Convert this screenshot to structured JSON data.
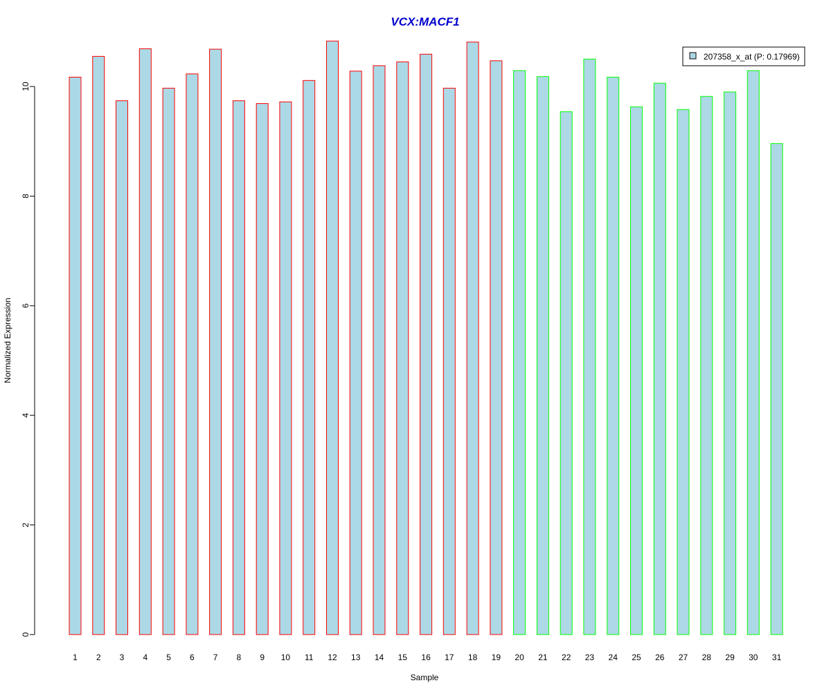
{
  "chart_data": {
    "type": "bar",
    "title": "VCX:MACF1",
    "xlabel": "Sample",
    "ylabel": "Normalized Expression",
    "ylim": [
      0,
      10.9
    ],
    "yticks": [
      "0",
      "2",
      "4",
      "6",
      "8",
      "10"
    ],
    "grid": false,
    "legend_position": "top-right",
    "categories": [
      "1",
      "2",
      "3",
      "4",
      "5",
      "6",
      "7",
      "8",
      "9",
      "10",
      "11",
      "12",
      "13",
      "14",
      "15",
      "16",
      "17",
      "18",
      "19",
      "20",
      "21",
      "22",
      "23",
      "24",
      "25",
      "26",
      "27",
      "28",
      "29",
      "30",
      "31"
    ],
    "series": [
      {
        "name": "207358_x_at (P: 0.17969)",
        "values": [
          10.17,
          10.55,
          9.74,
          10.69,
          9.97,
          10.23,
          10.68,
          9.74,
          9.69,
          9.72,
          10.11,
          10.83,
          10.28,
          10.38,
          10.45,
          10.59,
          9.97,
          10.81,
          10.47,
          10.29,
          10.18,
          9.54,
          10.5,
          10.17,
          9.63,
          10.06,
          9.58,
          9.82,
          9.9,
          10.29,
          8.96
        ]
      }
    ],
    "group_border_colors": [
      "#ff0000",
      "#ff0000",
      "#ff0000",
      "#ff0000",
      "#ff0000",
      "#ff0000",
      "#ff0000",
      "#ff0000",
      "#ff0000",
      "#ff0000",
      "#ff0000",
      "#ff0000",
      "#ff0000",
      "#ff0000",
      "#ff0000",
      "#ff0000",
      "#ff0000",
      "#ff0000",
      "#ff0000",
      "#00ff00",
      "#00ff00",
      "#00ff00",
      "#00ff00",
      "#00ff00",
      "#00ff00",
      "#00ff00",
      "#00ff00",
      "#00ff00",
      "#00ff00",
      "#00ff00",
      "#00ff00"
    ],
    "colors": {
      "bar_fill": "#add8e6",
      "title": "#0000cd",
      "axis": "#000000"
    }
  }
}
